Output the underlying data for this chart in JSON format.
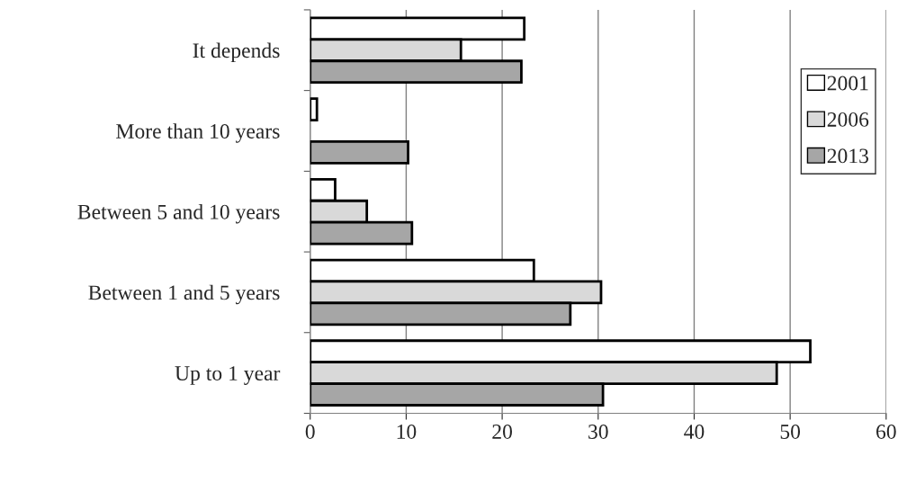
{
  "chart_data": {
    "type": "bar",
    "orientation": "horizontal",
    "categories": [
      "It depends",
      "More than 10 years",
      "Between 5 and 10 years",
      "Between 1 and 5 years",
      "Up to 1 year"
    ],
    "series": [
      {
        "name": "2001",
        "color": "#ffffff",
        "values": [
          22.3,
          0.7,
          2.6,
          23.3,
          52.1
        ]
      },
      {
        "name": "2006",
        "color": "#d9d9d9",
        "values": [
          15.7,
          null,
          5.9,
          30.3,
          48.6
        ]
      },
      {
        "name": "2013",
        "color": "#a6a6a6",
        "values": [
          22.0,
          10.2,
          10.6,
          27.1,
          30.5
        ]
      }
    ],
    "xlim": [
      0,
      60
    ],
    "xticks": [
      0,
      10,
      20,
      30,
      40,
      50,
      60
    ],
    "grid": "x",
    "legend": "top right"
  }
}
